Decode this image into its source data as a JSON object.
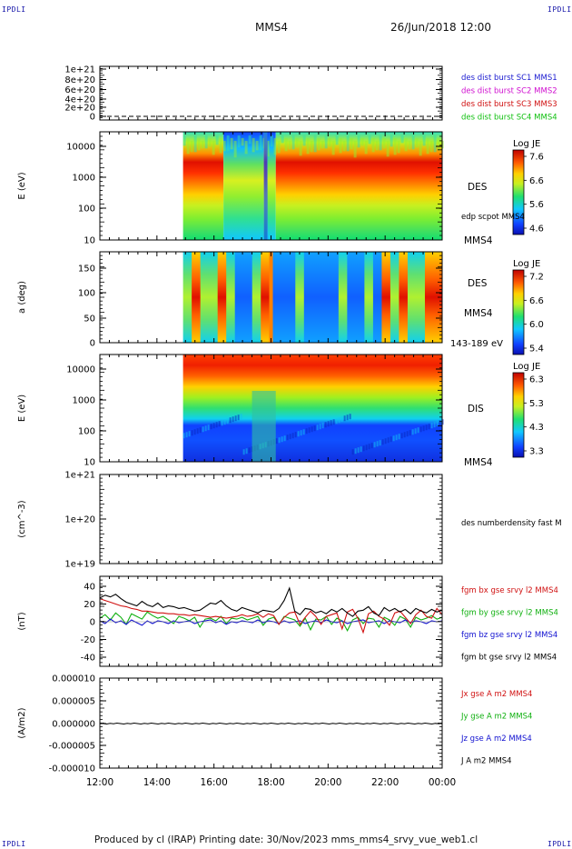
{
  "header": {
    "corner_label": "IPDLI",
    "spacecraft": "MMS4",
    "datetime": "26/Jun/2018 12:00"
  },
  "footer": {
    "text": "Produced by cl (IRAP)   Printing date: 30/Nov/2023   mms_mms4_srvy_vue_web1.cl"
  },
  "chart_data": [
    {
      "type": "line",
      "name_id": "burst",
      "y_ticks": [
        "1e+21",
        "8e+20",
        "6e+20",
        "4e+20",
        "2e+20",
        "0"
      ],
      "ylim": [
        0,
        1.1e+21
      ],
      "legend": [
        {
          "label": "des dist burst SC1 MMS1",
          "color": "#1a1ad0"
        },
        {
          "label": "des dist burst SC2 MMS2",
          "color": "#d010d0"
        },
        {
          "label": "des dist burst SC3 MMS3",
          "color": "#d01010"
        },
        {
          "label": "des dist burst SC4 MMS4",
          "color": "#10c010"
        }
      ]
    },
    {
      "type": "heatmap",
      "name_id": "des-energy",
      "ylabel": "E (eV)",
      "y_ticks": [
        "10000",
        "1000",
        "100",
        "10"
      ],
      "log_scale": true,
      "data_start": "14:55",
      "species": "DES",
      "overlay_label": "edp scpot MMS4",
      "sc_label": "MMS4",
      "colorbar": {
        "title": "Log JE",
        "ticks": [
          "7.6",
          "6.6",
          "5.6",
          "4.6"
        ]
      }
    },
    {
      "type": "heatmap",
      "name_id": "des-pitch",
      "ylabel": "a (deg)",
      "y_ticks": [
        "150",
        "100",
        "50",
        "0"
      ],
      "ylim": [
        0,
        180
      ],
      "species": "DES",
      "sc_label": "MMS4",
      "energy_range": "143-189 eV",
      "colorbar": {
        "title": "Log JE",
        "ticks": [
          "7.2",
          "6.6",
          "6.0",
          "5.4"
        ]
      }
    },
    {
      "type": "heatmap",
      "name_id": "dis-energy",
      "ylabel": "E (eV)",
      "y_ticks": [
        "10000",
        "1000",
        "100",
        "10"
      ],
      "log_scale": true,
      "species": "DIS",
      "sc_label": "MMS4",
      "colorbar": {
        "title": "Log JE",
        "ticks": [
          "6.3",
          "5.3",
          "4.3",
          "3.3"
        ]
      }
    },
    {
      "type": "line",
      "name_id": "density",
      "ylabel": "(cm^-3)",
      "y_ticks": [
        "1e+21",
        "1e+20",
        "1e+19"
      ],
      "log_scale": true,
      "legend": [
        {
          "label": "des numberdensity fast M",
          "color": "#000000"
        }
      ]
    },
    {
      "type": "line",
      "name_id": "fgm",
      "ylabel": "(nT)",
      "y_ticks": [
        "40",
        "20",
        "0",
        "-20",
        "-40"
      ],
      "ylim": [
        -50,
        50
      ],
      "legend": [
        {
          "label": "fgm bx gse srvy l2 MMS4",
          "color": "#d01010"
        },
        {
          "label": "fgm by gse srvy l2 MMS4",
          "color": "#10b010"
        },
        {
          "label": "fgm bz gse srvy l2 MMS4",
          "color": "#1010d0"
        },
        {
          "label": "fgm bt gse srvy l2 MMS4",
          "color": "#000000"
        }
      ],
      "bt_values": [
        27,
        30,
        28,
        31,
        26,
        22,
        20,
        18,
        23,
        19,
        17,
        21,
        16,
        18,
        17,
        15,
        16,
        14,
        12,
        13,
        17,
        21,
        20,
        24,
        18,
        14,
        12,
        16,
        14,
        12,
        10,
        13,
        12,
        11,
        15,
        24,
        38,
        12,
        8,
        15,
        14,
        10,
        12,
        9,
        14,
        11,
        15,
        10,
        6,
        12,
        13,
        17,
        10,
        7,
        16,
        12,
        15,
        11,
        14,
        9,
        15,
        12,
        10,
        14,
        11,
        13
      ],
      "bx_values": [
        26,
        24,
        22,
        20,
        18,
        17,
        15,
        14,
        12,
        12,
        11,
        10,
        10,
        9,
        9,
        8,
        8,
        7,
        8,
        7,
        6,
        5,
        6,
        5,
        4,
        5,
        6,
        8,
        6,
        7,
        9,
        5,
        9,
        7,
        -3,
        5,
        10,
        11,
        -3,
        5,
        12,
        6,
        -3,
        6,
        8,
        10,
        -8,
        11,
        14,
        4,
        -12,
        9,
        12,
        6,
        3,
        -4,
        10,
        12,
        5,
        -2,
        8,
        13,
        6,
        4,
        15,
        8
      ],
      "by_values": [
        4,
        8,
        2,
        10,
        5,
        -3,
        9,
        6,
        3,
        11,
        7,
        4,
        6,
        2,
        -2,
        6,
        4,
        1,
        5,
        -6,
        3,
        4,
        1,
        6,
        -2,
        4,
        3,
        5,
        2,
        4,
        6,
        -4,
        3,
        5,
        -3,
        6,
        4,
        2,
        -5,
        4,
        -9,
        3,
        2,
        6,
        -3,
        4,
        1,
        -10,
        2,
        5,
        -2,
        4,
        3,
        -6,
        5,
        2,
        -4,
        6,
        3,
        -6,
        5,
        2,
        4,
        7,
        3,
        5
      ],
      "bz_values": [
        1,
        -2,
        3,
        -1,
        1,
        -3,
        2,
        -1,
        -4,
        1,
        -2,
        1,
        0,
        -2,
        1,
        -1,
        0,
        1,
        -2,
        0,
        1,
        2,
        -1,
        1,
        -3,
        0,
        -1,
        1,
        0,
        -1,
        2,
        -1,
        1,
        0,
        -2,
        1,
        -1,
        0,
        1,
        -2,
        0,
        1,
        -1,
        2,
        0,
        -1,
        1,
        -2,
        0,
        1,
        2,
        -1,
        0,
        1,
        -2,
        1,
        0,
        -1,
        2,
        -1,
        1,
        0,
        -2,
        1,
        0,
        1
      ]
    },
    {
      "type": "line",
      "name_id": "current",
      "ylabel": "(A/m2)",
      "y_ticks": [
        "0.000010",
        "0.000005",
        "0.000000",
        "-0.000005",
        "-0.000010"
      ],
      "ylim": [
        -1e-05,
        1e-05
      ],
      "legend": [
        {
          "label": "Jx gse A m2 MMS4",
          "color": "#d01010"
        },
        {
          "label": "Jy gse A m2 MMS4",
          "color": "#10b010"
        },
        {
          "label": "Jz gse A m2 MMS4",
          "color": "#1010d0"
        },
        {
          "label": "J A m2 MMS4",
          "color": "#000000"
        }
      ]
    }
  ],
  "x_axis": {
    "tick_labels": [
      "12:00",
      "14:00",
      "16:00",
      "18:00",
      "20:00",
      "22:00",
      "00:00"
    ]
  }
}
